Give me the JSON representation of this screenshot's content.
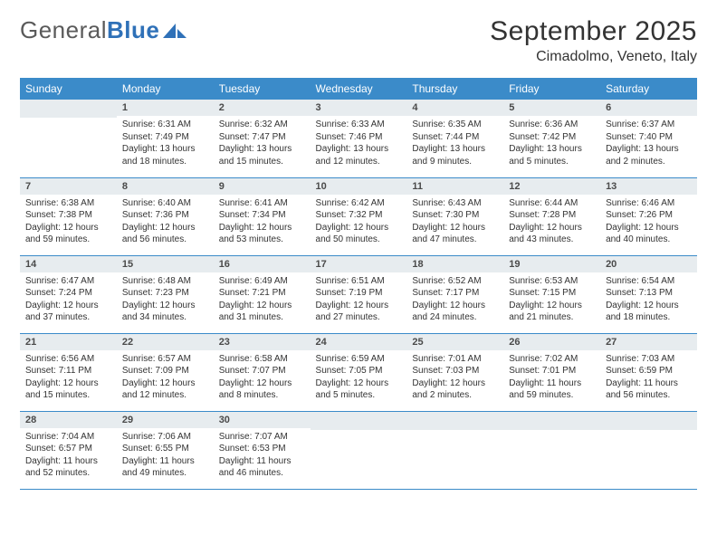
{
  "colors": {
    "header_bg": "#3b8bc9",
    "header_text": "#ffffff",
    "daynum_bg": "#e7ecef",
    "daynum_text": "#4a4a4a",
    "cell_border": "#3b8bc9",
    "body_text": "#333333",
    "logo_gray": "#5a5a5a",
    "logo_blue": "#2f71b8"
  },
  "logo": {
    "part1": "General",
    "part2": "Blue"
  },
  "title": "September 2025",
  "location": "Cimadolmo, Veneto, Italy",
  "weekdays": [
    "Sunday",
    "Monday",
    "Tuesday",
    "Wednesday",
    "Thursday",
    "Friday",
    "Saturday"
  ],
  "cells": [
    {
      "day": "",
      "sunrise": "",
      "sunset": "",
      "daylight": ""
    },
    {
      "day": "1",
      "sunrise": "Sunrise: 6:31 AM",
      "sunset": "Sunset: 7:49 PM",
      "daylight": "Daylight: 13 hours and 18 minutes."
    },
    {
      "day": "2",
      "sunrise": "Sunrise: 6:32 AM",
      "sunset": "Sunset: 7:47 PM",
      "daylight": "Daylight: 13 hours and 15 minutes."
    },
    {
      "day": "3",
      "sunrise": "Sunrise: 6:33 AM",
      "sunset": "Sunset: 7:46 PM",
      "daylight": "Daylight: 13 hours and 12 minutes."
    },
    {
      "day": "4",
      "sunrise": "Sunrise: 6:35 AM",
      "sunset": "Sunset: 7:44 PM",
      "daylight": "Daylight: 13 hours and 9 minutes."
    },
    {
      "day": "5",
      "sunrise": "Sunrise: 6:36 AM",
      "sunset": "Sunset: 7:42 PM",
      "daylight": "Daylight: 13 hours and 5 minutes."
    },
    {
      "day": "6",
      "sunrise": "Sunrise: 6:37 AM",
      "sunset": "Sunset: 7:40 PM",
      "daylight": "Daylight: 13 hours and 2 minutes."
    },
    {
      "day": "7",
      "sunrise": "Sunrise: 6:38 AM",
      "sunset": "Sunset: 7:38 PM",
      "daylight": "Daylight: 12 hours and 59 minutes."
    },
    {
      "day": "8",
      "sunrise": "Sunrise: 6:40 AM",
      "sunset": "Sunset: 7:36 PM",
      "daylight": "Daylight: 12 hours and 56 minutes."
    },
    {
      "day": "9",
      "sunrise": "Sunrise: 6:41 AM",
      "sunset": "Sunset: 7:34 PM",
      "daylight": "Daylight: 12 hours and 53 minutes."
    },
    {
      "day": "10",
      "sunrise": "Sunrise: 6:42 AM",
      "sunset": "Sunset: 7:32 PM",
      "daylight": "Daylight: 12 hours and 50 minutes."
    },
    {
      "day": "11",
      "sunrise": "Sunrise: 6:43 AM",
      "sunset": "Sunset: 7:30 PM",
      "daylight": "Daylight: 12 hours and 47 minutes."
    },
    {
      "day": "12",
      "sunrise": "Sunrise: 6:44 AM",
      "sunset": "Sunset: 7:28 PM",
      "daylight": "Daylight: 12 hours and 43 minutes."
    },
    {
      "day": "13",
      "sunrise": "Sunrise: 6:46 AM",
      "sunset": "Sunset: 7:26 PM",
      "daylight": "Daylight: 12 hours and 40 minutes."
    },
    {
      "day": "14",
      "sunrise": "Sunrise: 6:47 AM",
      "sunset": "Sunset: 7:24 PM",
      "daylight": "Daylight: 12 hours and 37 minutes."
    },
    {
      "day": "15",
      "sunrise": "Sunrise: 6:48 AM",
      "sunset": "Sunset: 7:23 PM",
      "daylight": "Daylight: 12 hours and 34 minutes."
    },
    {
      "day": "16",
      "sunrise": "Sunrise: 6:49 AM",
      "sunset": "Sunset: 7:21 PM",
      "daylight": "Daylight: 12 hours and 31 minutes."
    },
    {
      "day": "17",
      "sunrise": "Sunrise: 6:51 AM",
      "sunset": "Sunset: 7:19 PM",
      "daylight": "Daylight: 12 hours and 27 minutes."
    },
    {
      "day": "18",
      "sunrise": "Sunrise: 6:52 AM",
      "sunset": "Sunset: 7:17 PM",
      "daylight": "Daylight: 12 hours and 24 minutes."
    },
    {
      "day": "19",
      "sunrise": "Sunrise: 6:53 AM",
      "sunset": "Sunset: 7:15 PM",
      "daylight": "Daylight: 12 hours and 21 minutes."
    },
    {
      "day": "20",
      "sunrise": "Sunrise: 6:54 AM",
      "sunset": "Sunset: 7:13 PM",
      "daylight": "Daylight: 12 hours and 18 minutes."
    },
    {
      "day": "21",
      "sunrise": "Sunrise: 6:56 AM",
      "sunset": "Sunset: 7:11 PM",
      "daylight": "Daylight: 12 hours and 15 minutes."
    },
    {
      "day": "22",
      "sunrise": "Sunrise: 6:57 AM",
      "sunset": "Sunset: 7:09 PM",
      "daylight": "Daylight: 12 hours and 12 minutes."
    },
    {
      "day": "23",
      "sunrise": "Sunrise: 6:58 AM",
      "sunset": "Sunset: 7:07 PM",
      "daylight": "Daylight: 12 hours and 8 minutes."
    },
    {
      "day": "24",
      "sunrise": "Sunrise: 6:59 AM",
      "sunset": "Sunset: 7:05 PM",
      "daylight": "Daylight: 12 hours and 5 minutes."
    },
    {
      "day": "25",
      "sunrise": "Sunrise: 7:01 AM",
      "sunset": "Sunset: 7:03 PM",
      "daylight": "Daylight: 12 hours and 2 minutes."
    },
    {
      "day": "26",
      "sunrise": "Sunrise: 7:02 AM",
      "sunset": "Sunset: 7:01 PM",
      "daylight": "Daylight: 11 hours and 59 minutes."
    },
    {
      "day": "27",
      "sunrise": "Sunrise: 7:03 AM",
      "sunset": "Sunset: 6:59 PM",
      "daylight": "Daylight: 11 hours and 56 minutes."
    },
    {
      "day": "28",
      "sunrise": "Sunrise: 7:04 AM",
      "sunset": "Sunset: 6:57 PM",
      "daylight": "Daylight: 11 hours and 52 minutes."
    },
    {
      "day": "29",
      "sunrise": "Sunrise: 7:06 AM",
      "sunset": "Sunset: 6:55 PM",
      "daylight": "Daylight: 11 hours and 49 minutes."
    },
    {
      "day": "30",
      "sunrise": "Sunrise: 7:07 AM",
      "sunset": "Sunset: 6:53 PM",
      "daylight": "Daylight: 11 hours and 46 minutes."
    },
    {
      "day": "",
      "sunrise": "",
      "sunset": "",
      "daylight": ""
    },
    {
      "day": "",
      "sunrise": "",
      "sunset": "",
      "daylight": ""
    },
    {
      "day": "",
      "sunrise": "",
      "sunset": "",
      "daylight": ""
    },
    {
      "day": "",
      "sunrise": "",
      "sunset": "",
      "daylight": ""
    }
  ]
}
